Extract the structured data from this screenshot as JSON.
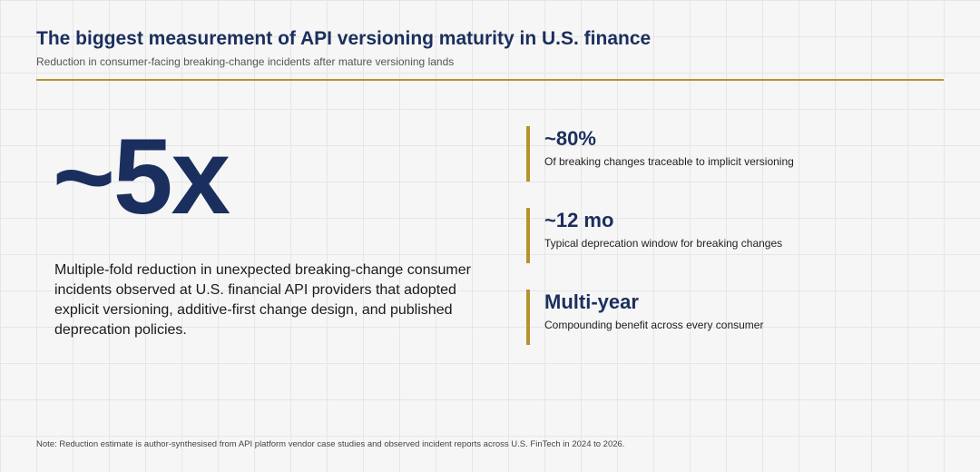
{
  "header": {
    "title": "The biggest measurement of API versioning maturity in U.S. finance",
    "subtitle": "Reduction in consumer-facing breaking-change incidents after mature versioning lands"
  },
  "hero": {
    "value": "~5x",
    "description": "Multiple-fold reduction in unexpected breaking-change consumer incidents observed at U.S. financial API providers that adopted explicit versioning, additive-first change design, and published deprecation policies."
  },
  "stats": [
    {
      "value": "~80%",
      "label": "Of breaking changes traceable to implicit versioning"
    },
    {
      "value": "~12 mo",
      "label": "Typical deprecation window for breaking changes"
    },
    {
      "value": "Multi-year",
      "label": "Compounding benefit across every consumer"
    }
  ],
  "note": "Note: Reduction estimate is author-synthesised from API platform vendor case studies and observed incident reports across U.S. FinTech in 2024 to 2026.",
  "colors": {
    "accent": "#b8902e",
    "navy": "#1b2f5e",
    "background": "#f6f6f6",
    "grid": "#e6e6e6"
  }
}
